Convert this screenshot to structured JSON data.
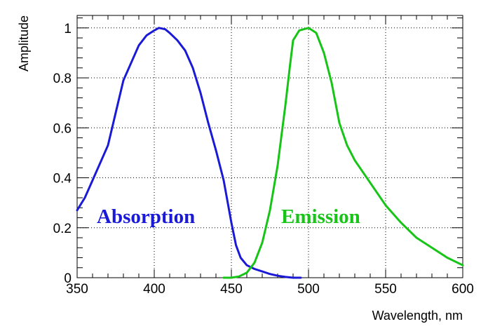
{
  "chart_data": {
    "type": "line",
    "title": "",
    "xlabel": "Wavelength, nm",
    "ylabel": "Amplitude",
    "xlim": [
      350,
      600
    ],
    "ylim": [
      0,
      1.05
    ],
    "grid": true,
    "x_major_ticks": [
      350,
      400,
      450,
      500,
      550,
      600
    ],
    "x_tick_labels": [
      "350",
      "400",
      "450",
      "500",
      "550",
      "600"
    ],
    "y_major_ticks": [
      0,
      0.2,
      0.4,
      0.6,
      0.8,
      1
    ],
    "y_tick_labels": [
      "0",
      "0.2",
      "0.4",
      "0.6",
      "0.8",
      "1"
    ],
    "series": [
      {
        "name": "Absorption",
        "color": "#1a1ad6",
        "points": [
          [
            350,
            0.27
          ],
          [
            355,
            0.32
          ],
          [
            360,
            0.39
          ],
          [
            365,
            0.46
          ],
          [
            370,
            0.53
          ],
          [
            375,
            0.66
          ],
          [
            380,
            0.79
          ],
          [
            385,
            0.86
          ],
          [
            390,
            0.93
          ],
          [
            395,
            0.97
          ],
          [
            400,
            0.99
          ],
          [
            403,
            1.0
          ],
          [
            407,
            0.995
          ],
          [
            410,
            0.98
          ],
          [
            415,
            0.95
          ],
          [
            420,
            0.91
          ],
          [
            425,
            0.84
          ],
          [
            430,
            0.74
          ],
          [
            435,
            0.62
          ],
          [
            440,
            0.51
          ],
          [
            445,
            0.39
          ],
          [
            450,
            0.22
          ],
          [
            453,
            0.13
          ],
          [
            456,
            0.08
          ],
          [
            460,
            0.05
          ],
          [
            465,
            0.035
          ],
          [
            470,
            0.025
          ],
          [
            475,
            0.015
          ],
          [
            480,
            0.008
          ],
          [
            485,
            0.003
          ],
          [
            490,
            0.0
          ],
          [
            495,
            0.0
          ]
        ]
      },
      {
        "name": "Emission",
        "color": "#17c417",
        "points": [
          [
            445,
            0.0
          ],
          [
            450,
            0.0
          ],
          [
            455,
            0.005
          ],
          [
            460,
            0.02
          ],
          [
            465,
            0.06
          ],
          [
            470,
            0.14
          ],
          [
            475,
            0.27
          ],
          [
            480,
            0.45
          ],
          [
            485,
            0.69
          ],
          [
            488,
            0.85
          ],
          [
            490,
            0.95
          ],
          [
            494,
            0.99
          ],
          [
            500,
            1.0
          ],
          [
            505,
            0.98
          ],
          [
            510,
            0.9
          ],
          [
            515,
            0.78
          ],
          [
            520,
            0.62
          ],
          [
            525,
            0.53
          ],
          [
            530,
            0.47
          ],
          [
            540,
            0.38
          ],
          [
            550,
            0.29
          ],
          [
            560,
            0.22
          ],
          [
            570,
            0.16
          ],
          [
            580,
            0.12
          ],
          [
            590,
            0.08
          ],
          [
            600,
            0.05
          ]
        ]
      }
    ],
    "annotations": [
      {
        "text": "Absorption",
        "color": "#1a1ad6"
      },
      {
        "text": "Emission",
        "color": "#17c417"
      }
    ]
  }
}
